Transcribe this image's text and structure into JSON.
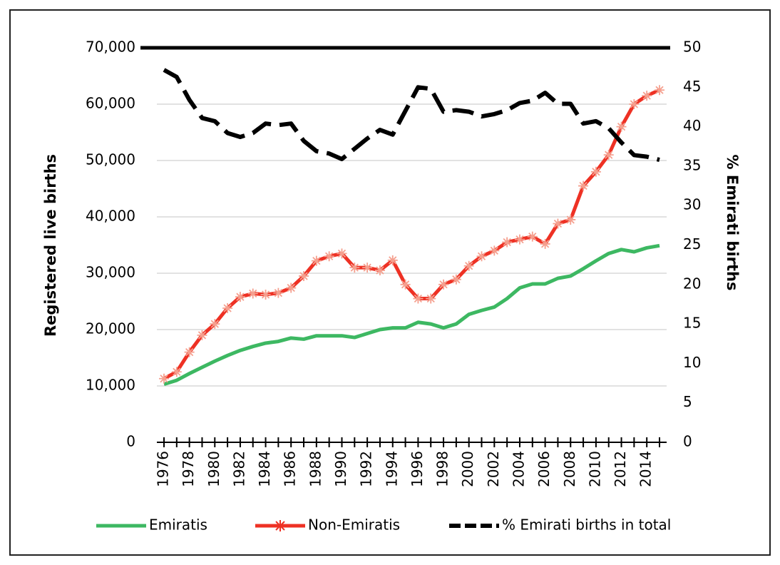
{
  "chart_data": {
    "type": "line",
    "y_label": "Registered live births",
    "y2_label": "% Emirati births",
    "categories": [
      "1976",
      null,
      "1978",
      null,
      "1980",
      null,
      "1982",
      null,
      "1984",
      null,
      "1986",
      null,
      "1988",
      null,
      "1990",
      null,
      "1992",
      null,
      "1994",
      null,
      "1996",
      null,
      "1998",
      null,
      "2000",
      null,
      "2002",
      null,
      "2004",
      null,
      "2006",
      null,
      "2008",
      null,
      "2010",
      null,
      "2012",
      null,
      "2014",
      null
    ],
    "series": [
      {
        "name": "Emiratis",
        "color": "#3db862",
        "style": "solid",
        "values": [
          10300,
          11000,
          12200,
          13300,
          14400,
          15400,
          16300,
          17000,
          17600,
          17900,
          18500,
          18300,
          18900,
          18900,
          18900,
          18600,
          19300,
          20000,
          20300,
          20300,
          21300,
          21000,
          20300,
          21000,
          22700,
          23400,
          24000,
          25500,
          27400,
          28100,
          28100,
          29100,
          29500,
          30800,
          32200,
          33500,
          34200,
          33800,
          34500,
          34900
        ]
      },
      {
        "name": "Non-Emiratis",
        "color": "#ee3124",
        "style": "solid",
        "marker": "asterisk",
        "values": [
          11300,
          12500,
          16000,
          19000,
          21000,
          23800,
          25800,
          26400,
          26200,
          26500,
          27400,
          29500,
          32200,
          33000,
          33500,
          31000,
          31000,
          30500,
          32300,
          28000,
          25500,
          25500,
          28000,
          28900,
          31300,
          33000,
          34000,
          35500,
          36000,
          36500,
          35200,
          38800,
          39500,
          45500,
          48000,
          51000,
          56000,
          60000,
          61500,
          62500
        ]
      },
      {
        "name": "% Emirati births in total",
        "color": "#000000",
        "style": "dashed",
        "axis": "y2",
        "values": [
          47.2,
          46.3,
          43.4,
          41.1,
          40.7,
          39.2,
          38.7,
          39.2,
          40.4,
          40.2,
          40.4,
          38.2,
          36.9,
          36.6,
          35.9,
          37.2,
          38.5,
          39.6,
          39.0,
          42.0,
          45.0,
          44.8,
          41.9,
          42.1,
          41.9,
          41.3,
          41.6,
          42.1,
          43.0,
          43.3,
          44.3,
          42.9,
          42.9,
          40.4,
          40.7,
          39.8,
          38.0,
          36.4,
          36.2,
          35.8
        ]
      }
    ],
    "ylim": [
      0,
      70000
    ],
    "yticks": [
      0,
      {
        "value": 10000,
        "label": "10,000"
      },
      {
        "value": 20000,
        "label": "20,000"
      },
      {
        "value": 30000,
        "label": "30,000"
      },
      {
        "value": 40000,
        "label": "40,000"
      },
      {
        "value": 50000,
        "label": "50,000"
      },
      {
        "value": 60000,
        "label": "60,000"
      },
      {
        "value": 70000,
        "label": "70,000"
      }
    ],
    "y2lim": [
      0,
      50
    ],
    "y2ticks": [
      0,
      5,
      10,
      15,
      20,
      25,
      30,
      35,
      40,
      45,
      50
    ],
    "grid": true,
    "legend": "bottom"
  }
}
